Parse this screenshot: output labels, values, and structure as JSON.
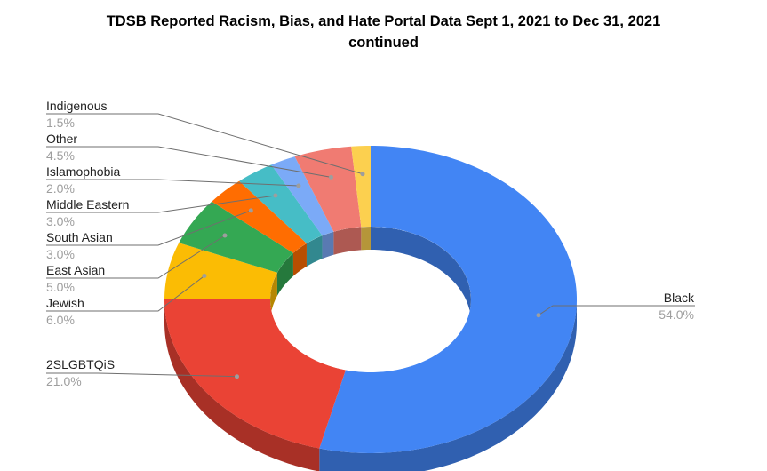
{
  "chart_data": {
    "type": "pie",
    "title_line1": "TDSB Reported Racism, Bias, and Hate Portal Data Sept 1, 2021 to Dec 31, 2021",
    "title_line2": "continued",
    "slices": [
      {
        "label": "Black",
        "value": 54.0,
        "value_label": "54.0%",
        "color": "#4285f4"
      },
      {
        "label": "2SLGBTQiS",
        "value": 21.0,
        "value_label": "21.0%",
        "color": "#ea4335"
      },
      {
        "label": "Jewish",
        "value": 6.0,
        "value_label": "6.0%",
        "color": "#fbbc04"
      },
      {
        "label": "East Asian",
        "value": 5.0,
        "value_label": "5.0%",
        "color": "#34a853"
      },
      {
        "label": "South Asian",
        "value": 3.0,
        "value_label": "3.0%",
        "color": "#ff6d01"
      },
      {
        "label": "Middle Eastern",
        "value": 3.0,
        "value_label": "3.0%",
        "color": "#46bdc6"
      },
      {
        "label": "Islamophobia",
        "value": 2.0,
        "value_label": "2.0%",
        "color": "#7baaf7"
      },
      {
        "label": "Other",
        "value": 4.5,
        "value_label": "4.5%",
        "color": "#f07b72"
      },
      {
        "label": "Indigenous",
        "value": 1.5,
        "value_label": "1.5%",
        "color": "#fcd04f"
      }
    ],
    "style": "3d-donut",
    "legend": "none"
  }
}
